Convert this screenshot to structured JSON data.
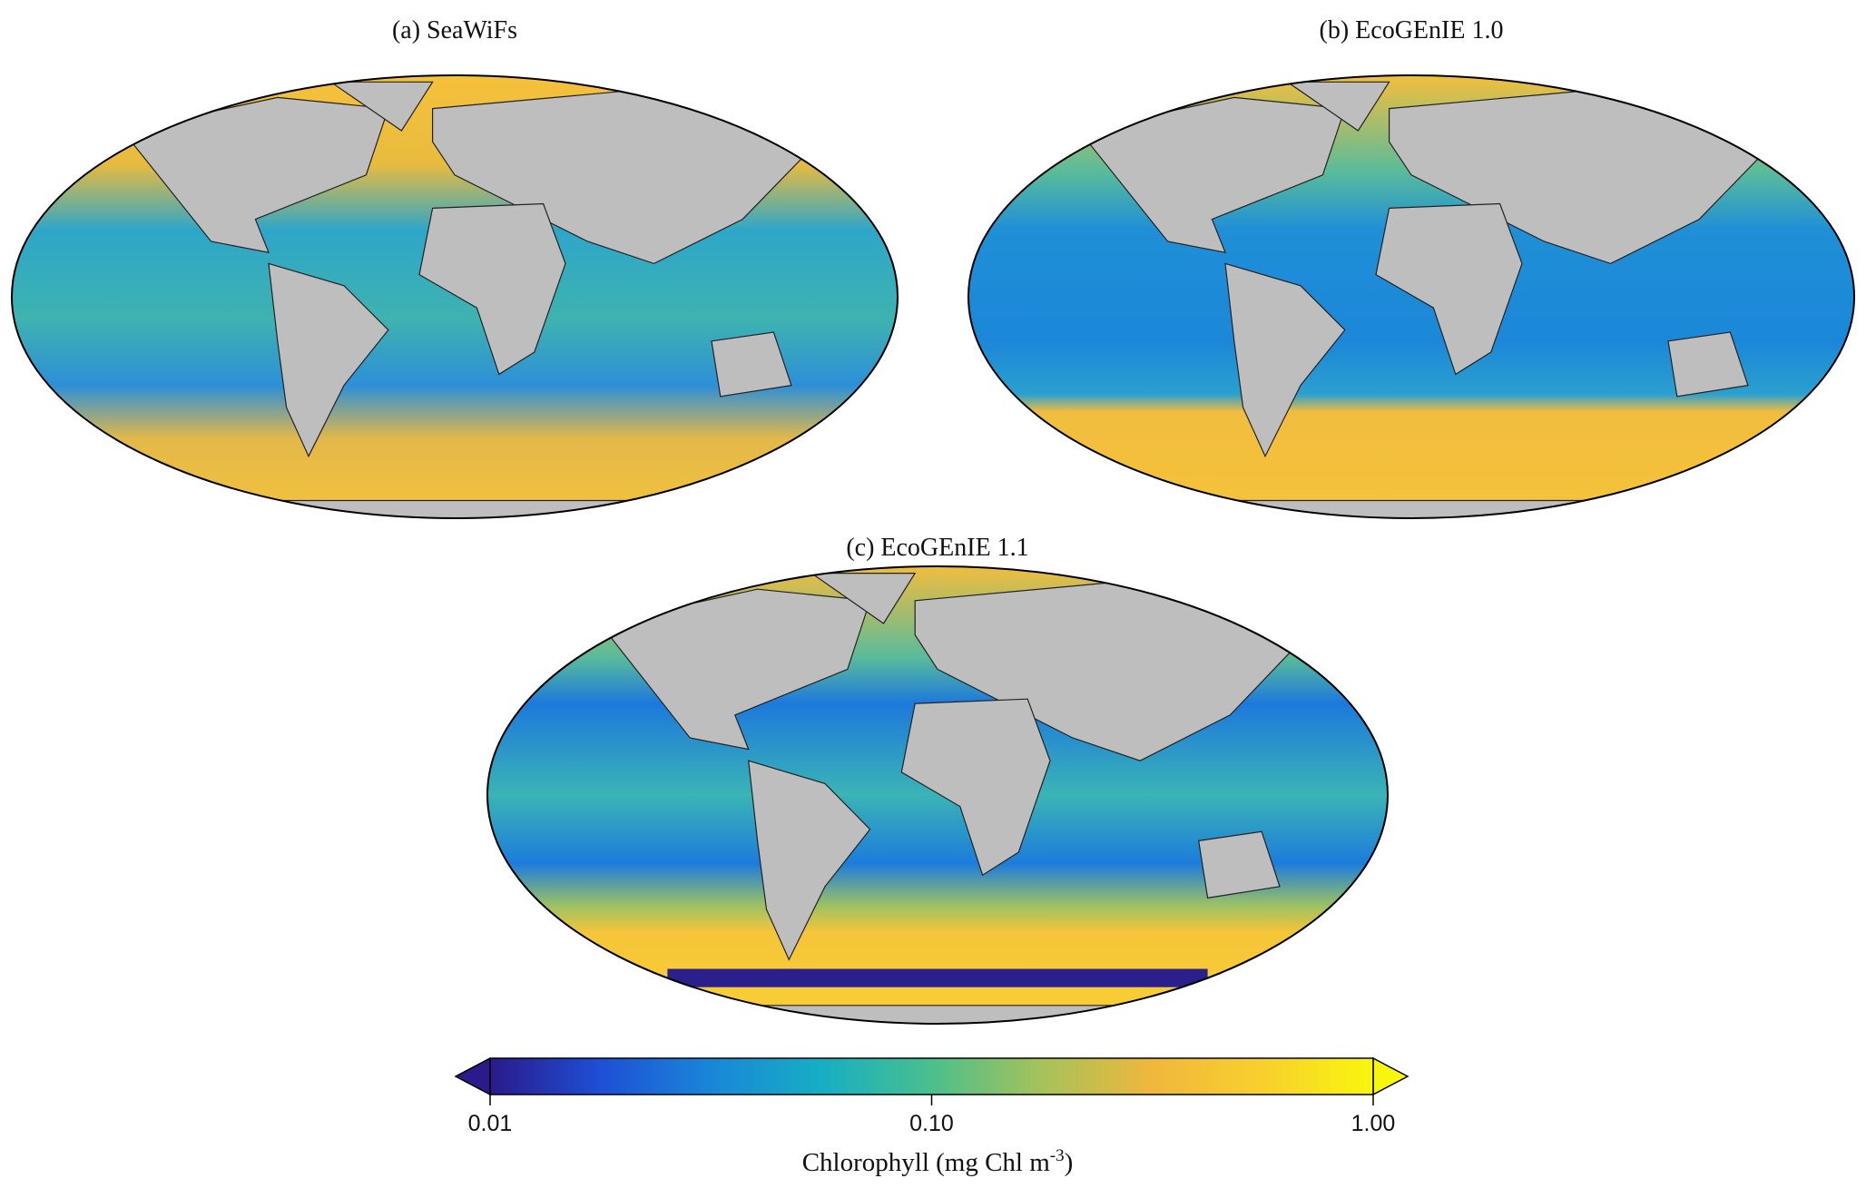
{
  "panels": [
    {
      "title": "(a) SeaWiFs"
    },
    {
      "title": "(b) EcoGEnIE 1.0"
    },
    {
      "title": "(c) EcoGEnIE 1.1"
    }
  ],
  "colorbar": {
    "scale": "log",
    "lim": [
      0.01,
      1
    ],
    "ticks": [
      {
        "value": 0.01,
        "label": "0.01"
      },
      {
        "value": 0.1,
        "label": "0.10"
      },
      {
        "value": 1,
        "label": "1.00"
      }
    ],
    "colormap": [
      "#2b1a8a",
      "#1e4fd6",
      "#1a86d8",
      "#16aec4",
      "#4bbf8e",
      "#a6c25a",
      "#f0b73c",
      "#f8d02e",
      "#f9f60e"
    ],
    "label": {
      "text": "Chlorophyll (mg Chl m",
      "superscript": "-3",
      "suffix": ")"
    }
  }
}
